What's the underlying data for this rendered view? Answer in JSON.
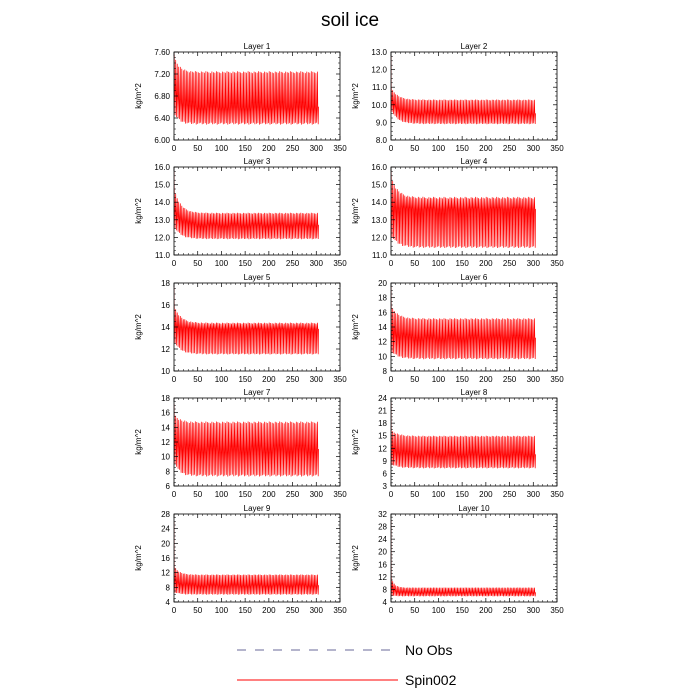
{
  "figure": {
    "title": "soil ice"
  },
  "legend": {
    "items": [
      {
        "label": "No Obs",
        "color": "#6a6a9a",
        "style": "dashed"
      },
      {
        "label": "Spin002",
        "color": "#ff0000",
        "style": "solid"
      }
    ]
  },
  "chart_data": [
    {
      "type": "line",
      "title": "Layer 1",
      "ylabel": "kg/m^2",
      "xlim": [
        0,
        350
      ],
      "xticks": [
        0,
        50,
        100,
        150,
        200,
        250,
        300,
        350
      ],
      "ylim": [
        6.0,
        7.6
      ],
      "yticks": [
        "6.00",
        "6.40",
        "6.80",
        "7.20",
        "7.60"
      ],
      "series": [
        {
          "name": "Spin002",
          "color": "#ff0000",
          "x_range": [
            0,
            305
          ],
          "cycles": 96,
          "initial_value": 7.58,
          "settle_time": 30,
          "settled_low": 6.28,
          "settled_mid": 6.6,
          "settled_high": 7.25,
          "early_low": 6.45,
          "early_high": 7.55
        }
      ]
    },
    {
      "type": "line",
      "title": "Layer 2",
      "ylabel": "kg/m^2",
      "xlim": [
        0,
        350
      ],
      "xticks": [
        0,
        50,
        100,
        150,
        200,
        250,
        300,
        350
      ],
      "ylim": [
        8.0,
        13.0
      ],
      "yticks": [
        "8.0",
        "9.0",
        "10.0",
        "11.0",
        "12.0",
        "13.0"
      ],
      "series": [
        {
          "name": "Spin002",
          "color": "#ff0000",
          "x_range": [
            0,
            305
          ],
          "cycles": 96,
          "initial_value": 12.8,
          "settle_time": 40,
          "settled_low": 8.9,
          "settled_mid": 9.5,
          "settled_high": 10.3,
          "early_low": 9.6,
          "early_high": 11.0
        }
      ]
    },
    {
      "type": "line",
      "title": "Layer 3",
      "ylabel": "kg/m^2",
      "xlim": [
        0,
        350
      ],
      "xticks": [
        0,
        50,
        100,
        150,
        200,
        250,
        300,
        350
      ],
      "ylim": [
        11.0,
        16.0
      ],
      "yticks": [
        "11.0",
        "12.0",
        "13.0",
        "14.0",
        "15.0",
        "16.0"
      ],
      "series": [
        {
          "name": "Spin002",
          "color": "#ff0000",
          "x_range": [
            0,
            305
          ],
          "cycles": 96,
          "initial_value": 15.8,
          "settle_time": 40,
          "settled_low": 11.9,
          "settled_mid": 12.7,
          "settled_high": 13.4,
          "early_low": 12.5,
          "early_high": 14.8
        }
      ]
    },
    {
      "type": "line",
      "title": "Layer 4",
      "ylabel": "kg/m^2",
      "xlim": [
        0,
        350
      ],
      "xticks": [
        0,
        50,
        100,
        150,
        200,
        250,
        300,
        350
      ],
      "ylim": [
        11.0,
        16.0
      ],
      "yticks": [
        "11.0",
        "12.0",
        "13.0",
        "14.0",
        "15.0",
        "16.0"
      ],
      "series": [
        {
          "name": "Spin002",
          "color": "#ff0000",
          "x_range": [
            0,
            305
          ],
          "cycles": 96,
          "initial_value": 15.9,
          "settle_time": 40,
          "settled_low": 11.4,
          "settled_mid": 13.6,
          "settled_high": 14.3,
          "early_low": 12.0,
          "early_high": 15.5
        }
      ]
    },
    {
      "type": "line",
      "title": "Layer 5",
      "ylabel": "kg/m^2",
      "xlim": [
        0,
        350
      ],
      "xticks": [
        0,
        50,
        100,
        150,
        200,
        250,
        300,
        350
      ],
      "ylim": [
        10,
        18
      ],
      "yticks": [
        "10",
        "12",
        "14",
        "16",
        "18"
      ],
      "series": [
        {
          "name": "Spin002",
          "color": "#ff0000",
          "x_range": [
            0,
            305
          ],
          "cycles": 96,
          "initial_value": 17.6,
          "settle_time": 40,
          "settled_low": 11.5,
          "settled_mid": 13.8,
          "settled_high": 14.4,
          "early_low": 12.5,
          "early_high": 16.0
        }
      ]
    },
    {
      "type": "line",
      "title": "Layer 6",
      "ylabel": "kg/m^2",
      "xlim": [
        0,
        350
      ],
      "xticks": [
        0,
        50,
        100,
        150,
        200,
        250,
        300,
        350
      ],
      "ylim": [
        8,
        20
      ],
      "yticks": [
        "8",
        "10",
        "12",
        "14",
        "16",
        "18",
        "20"
      ],
      "series": [
        {
          "name": "Spin002",
          "color": "#ff0000",
          "x_range": [
            0,
            305
          ],
          "cycles": 96,
          "initial_value": 19.5,
          "settle_time": 40,
          "settled_low": 9.6,
          "settled_mid": 12.5,
          "settled_high": 15.2,
          "early_low": 10.5,
          "early_high": 17.0
        }
      ]
    },
    {
      "type": "line",
      "title": "Layer 7",
      "ylabel": "kg/m^2",
      "xlim": [
        0,
        350
      ],
      "xticks": [
        0,
        50,
        100,
        150,
        200,
        250,
        300,
        350
      ],
      "ylim": [
        6,
        18
      ],
      "yticks": [
        "6",
        "8",
        "10",
        "12",
        "14",
        "16",
        "18"
      ],
      "series": [
        {
          "name": "Spin002",
          "color": "#ff0000",
          "x_range": [
            0,
            305
          ],
          "cycles": 96,
          "initial_value": 17.2,
          "settle_time": 30,
          "settled_low": 7.3,
          "settled_mid": 11.0,
          "settled_high": 14.8,
          "early_low": 9.0,
          "early_high": 16.0
        }
      ]
    },
    {
      "type": "line",
      "title": "Layer 8",
      "ylabel": "kg/m^2",
      "xlim": [
        0,
        350
      ],
      "xticks": [
        0,
        50,
        100,
        150,
        200,
        250,
        300,
        350
      ],
      "ylim": [
        3,
        24
      ],
      "yticks": [
        "3",
        "6",
        "9",
        "12",
        "15",
        "18",
        "21",
        "24"
      ],
      "series": [
        {
          "name": "Spin002",
          "color": "#ff0000",
          "x_range": [
            0,
            305
          ],
          "cycles": 96,
          "initial_value": 23.0,
          "settle_time": 40,
          "settled_low": 7.2,
          "settled_mid": 10.5,
          "settled_high": 15.0,
          "early_low": 8.0,
          "early_high": 16.5
        }
      ]
    },
    {
      "type": "line",
      "title": "Layer 9",
      "ylabel": "kg/m^2",
      "xlim": [
        0,
        350
      ],
      "xticks": [
        0,
        50,
        100,
        150,
        200,
        250,
        300,
        350
      ],
      "ylim": [
        4,
        28
      ],
      "yticks": [
        "4",
        "8",
        "12",
        "16",
        "20",
        "24",
        "28"
      ],
      "series": [
        {
          "name": "Spin002",
          "color": "#ff0000",
          "x_range": [
            0,
            305
          ],
          "cycles": 96,
          "initial_value": 26.0,
          "settle_time": 30,
          "settled_low": 6.0,
          "settled_mid": 8.5,
          "settled_high": 11.5,
          "early_low": 6.5,
          "early_high": 14.0
        }
      ]
    },
    {
      "type": "line",
      "title": "Layer 10",
      "ylabel": "kg/m^2",
      "xlim": [
        0,
        350
      ],
      "xticks": [
        0,
        50,
        100,
        150,
        200,
        250,
        300,
        350
      ],
      "ylim": [
        4,
        32
      ],
      "yticks": [
        "4",
        "8",
        "12",
        "16",
        "20",
        "24",
        "28",
        "32"
      ],
      "series": [
        {
          "name": "Spin002",
          "color": "#ff0000",
          "x_range": [
            0,
            305
          ],
          "cycles": 96,
          "initial_value": 30.0,
          "settle_time": 20,
          "settled_low": 5.8,
          "settled_mid": 7.0,
          "settled_high": 8.6,
          "early_low": 6.0,
          "early_high": 12.0
        }
      ]
    }
  ]
}
